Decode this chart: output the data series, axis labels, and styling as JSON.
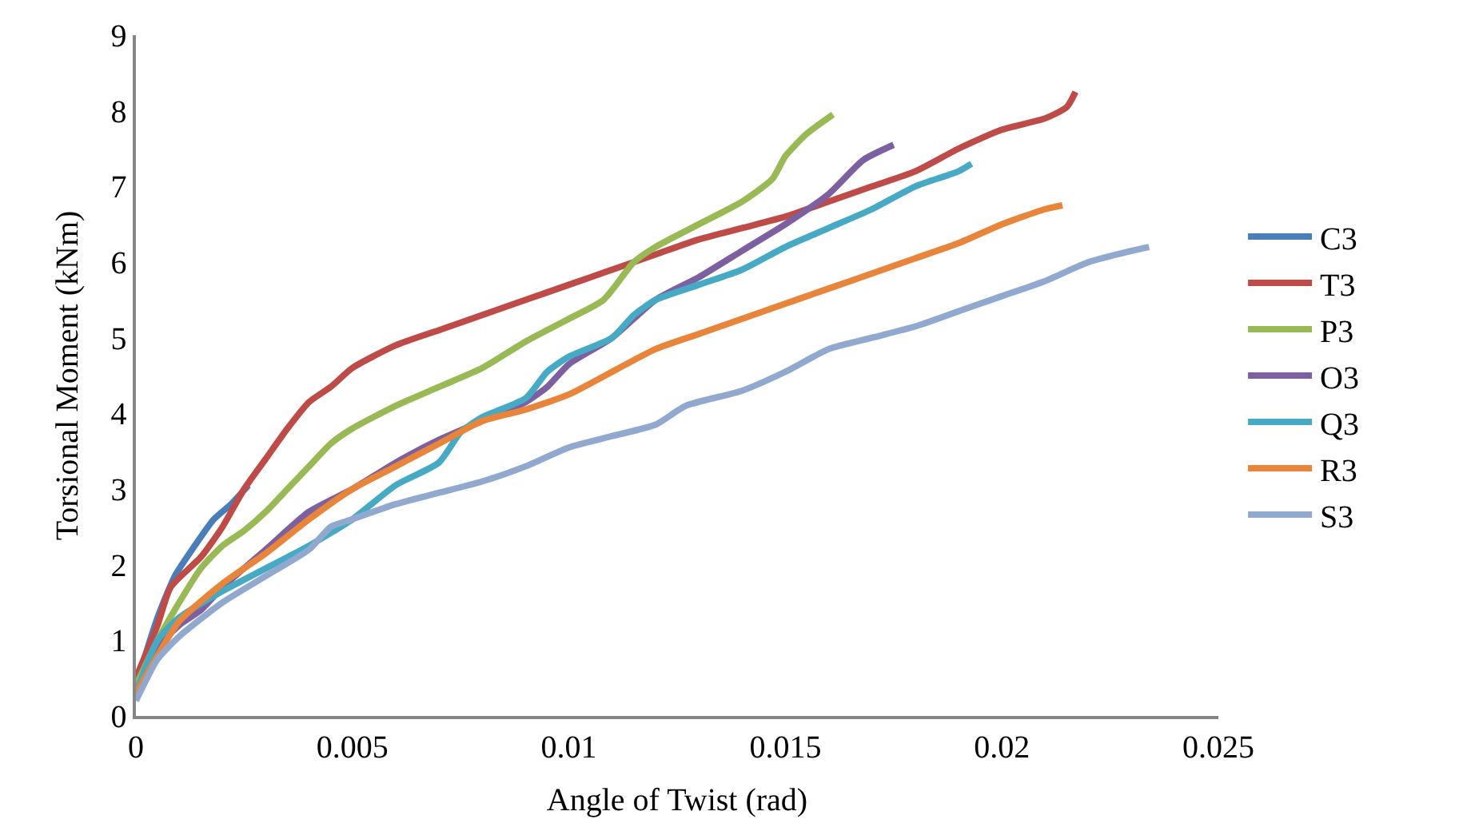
{
  "chart_data": {
    "type": "line",
    "xlabel": "Angle of Twist (rad)",
    "ylabel": "Torsional Moment (kNm)",
    "xlim": [
      0,
      0.025
    ],
    "xticks": [
      0,
      0.005,
      0.01,
      0.015,
      0.02,
      0.025
    ],
    "ylim": [
      0,
      9
    ],
    "yticks": [
      0,
      1,
      2,
      3,
      4,
      5,
      6,
      7,
      8,
      9
    ],
    "legend": "right",
    "marker": "none",
    "line_style": "solid",
    "series": [
      {
        "name": "C3",
        "color": "#4a7ebb",
        "x": [
          0,
          0.0005,
          0.0009,
          0.0013,
          0.0018,
          0.0022,
          0.0026
        ],
        "values": [
          0.4,
          1.3,
          1.85,
          2.2,
          2.6,
          2.8,
          3.05
        ]
      },
      {
        "name": "T3",
        "color": "#be4b48",
        "x": [
          0,
          0.0005,
          0.0008,
          0.0015,
          0.002,
          0.0025,
          0.003,
          0.0035,
          0.004,
          0.0045,
          0.005,
          0.006,
          0.007,
          0.008,
          0.009,
          0.01,
          0.011,
          0.012,
          0.013,
          0.014,
          0.015,
          0.016,
          0.017,
          0.018,
          0.019,
          0.02,
          0.021,
          0.0215,
          0.0217
        ],
        "values": [
          0.5,
          1.2,
          1.7,
          2.1,
          2.5,
          3.0,
          3.4,
          3.8,
          4.15,
          4.35,
          4.6,
          4.9,
          5.1,
          5.3,
          5.5,
          5.7,
          5.9,
          6.1,
          6.3,
          6.45,
          6.6,
          6.8,
          7.0,
          7.2,
          7.5,
          7.75,
          7.9,
          8.05,
          8.25
        ]
      },
      {
        "name": "P3",
        "color": "#98b954",
        "x": [
          0,
          0.0005,
          0.001,
          0.0015,
          0.002,
          0.0025,
          0.003,
          0.0035,
          0.004,
          0.0045,
          0.005,
          0.006,
          0.007,
          0.008,
          0.009,
          0.01,
          0.0108,
          0.0115,
          0.012,
          0.013,
          0.014,
          0.0147,
          0.015,
          0.0155,
          0.0161
        ],
        "values": [
          0.4,
          1.0,
          1.5,
          1.95,
          2.25,
          2.45,
          2.7,
          3.0,
          3.3,
          3.6,
          3.8,
          4.1,
          4.35,
          4.6,
          4.95,
          5.25,
          5.5,
          6.0,
          6.2,
          6.5,
          6.8,
          7.1,
          7.4,
          7.7,
          7.95
        ]
      },
      {
        "name": "O3",
        "color": "#7d60a0",
        "x": [
          0,
          0.0005,
          0.001,
          0.0015,
          0.002,
          0.003,
          0.004,
          0.005,
          0.006,
          0.007,
          0.008,
          0.009,
          0.0095,
          0.01,
          0.011,
          0.012,
          0.013,
          0.014,
          0.015,
          0.016,
          0.0168,
          0.0175
        ],
        "values": [
          0.3,
          0.9,
          1.2,
          1.4,
          1.7,
          2.2,
          2.7,
          3.0,
          3.35,
          3.65,
          3.9,
          4.15,
          4.35,
          4.65,
          5.0,
          5.5,
          5.8,
          6.15,
          6.5,
          6.9,
          7.35,
          7.55
        ]
      },
      {
        "name": "Q3",
        "color": "#46aac5",
        "x": [
          0,
          0.0005,
          0.001,
          0.002,
          0.003,
          0.004,
          0.005,
          0.006,
          0.007,
          0.0075,
          0.008,
          0.009,
          0.0095,
          0.01,
          0.011,
          0.0115,
          0.012,
          0.013,
          0.014,
          0.015,
          0.016,
          0.017,
          0.018,
          0.019,
          0.0193
        ],
        "values": [
          0.3,
          1.0,
          1.3,
          1.65,
          1.95,
          2.25,
          2.6,
          3.05,
          3.35,
          3.75,
          3.95,
          4.2,
          4.55,
          4.75,
          5.0,
          5.3,
          5.5,
          5.7,
          5.9,
          6.2,
          6.45,
          6.7,
          7.0,
          7.2,
          7.3
        ]
      },
      {
        "name": "R3",
        "color": "#e8853a",
        "x": [
          0,
          0.0005,
          0.001,
          0.002,
          0.003,
          0.004,
          0.005,
          0.006,
          0.007,
          0.008,
          0.009,
          0.01,
          0.011,
          0.012,
          0.013,
          0.014,
          0.015,
          0.016,
          0.017,
          0.018,
          0.019,
          0.02,
          0.021,
          0.0214
        ],
        "values": [
          0.3,
          0.8,
          1.25,
          1.75,
          2.15,
          2.6,
          3.0,
          3.3,
          3.6,
          3.9,
          4.05,
          4.25,
          4.55,
          4.85,
          5.05,
          5.25,
          5.45,
          5.65,
          5.85,
          6.05,
          6.25,
          6.5,
          6.7,
          6.75
        ]
      },
      {
        "name": "S3",
        "color": "#92a9cf",
        "x": [
          0,
          0.0005,
          0.001,
          0.002,
          0.003,
          0.004,
          0.0045,
          0.005,
          0.006,
          0.007,
          0.008,
          0.009,
          0.01,
          0.011,
          0.012,
          0.0127,
          0.014,
          0.015,
          0.016,
          0.017,
          0.018,
          0.019,
          0.02,
          0.021,
          0.022,
          0.023,
          0.0234
        ],
        "values": [
          0.2,
          0.75,
          1.05,
          1.5,
          1.85,
          2.2,
          2.5,
          2.6,
          2.8,
          2.95,
          3.1,
          3.3,
          3.55,
          3.7,
          3.85,
          4.1,
          4.3,
          4.55,
          4.85,
          5.0,
          5.15,
          5.35,
          5.55,
          5.75,
          6.0,
          6.15,
          6.2
        ]
      }
    ]
  }
}
